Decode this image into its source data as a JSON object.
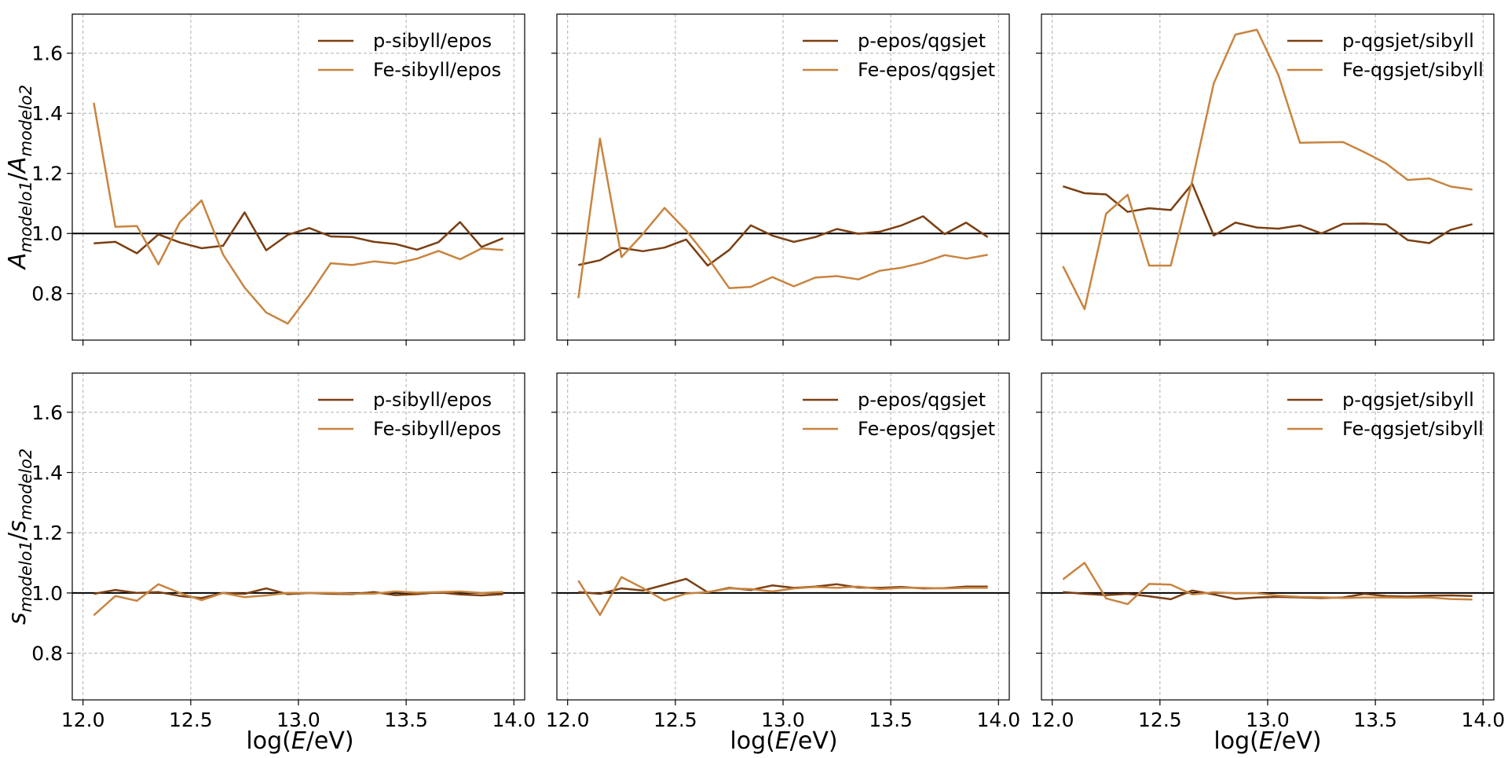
{
  "figure": {
    "ylabel_top": "A_modelo1/A_modelo2",
    "ylabel_bottom": "s_modelo1/s_modelo2",
    "xlabel": "log(E/eV)"
  },
  "colors": {
    "p": "#7b3f12",
    "fe": "#c8843f",
    "ref": "#000000"
  },
  "chart_data": [
    {
      "type": "line",
      "panel": "top-left",
      "legend_position": "top-right",
      "xlim": [
        11.95,
        14.05
      ],
      "ylim": [
        0.645,
        1.73
      ],
      "xticks": [
        "12.0",
        "12.5",
        "13.0",
        "13.5",
        "14.0"
      ],
      "yticks": [
        "0.8",
        "1.0",
        "1.2",
        "1.4",
        "1.6"
      ],
      "x": [
        12.05,
        12.15,
        12.25,
        12.35,
        12.45,
        12.55,
        12.65,
        12.75,
        12.85,
        12.95,
        13.05,
        13.15,
        13.25,
        13.35,
        13.45,
        13.55,
        13.65,
        13.75,
        13.85,
        13.95
      ],
      "series": [
        {
          "name": "p-sibyll/epos",
          "color": "#7b3f12",
          "values": [
            0.967,
            0.972,
            0.934,
            0.997,
            0.97,
            0.951,
            0.959,
            1.07,
            0.944,
            0.995,
            1.018,
            0.99,
            0.988,
            0.972,
            0.965,
            0.946,
            0.971,
            1.038,
            0.955,
            0.984
          ]
        },
        {
          "name": "Fe-sibyll/epos",
          "color": "#c8843f",
          "values": [
            1.435,
            1.022,
            1.025,
            0.897,
            1.038,
            1.11,
            0.93,
            0.82,
            0.737,
            0.7,
            0.795,
            0.901,
            0.895,
            0.907,
            0.9,
            0.916,
            0.942,
            0.914,
            0.95,
            0.945
          ]
        }
      ],
      "reference_line": 1.0
    },
    {
      "type": "line",
      "panel": "top-middle",
      "legend_position": "top-right",
      "xlim": [
        11.95,
        14.05
      ],
      "ylim": [
        0.645,
        1.73
      ],
      "xticks": [
        "12.0",
        "12.5",
        "13.0",
        "13.5",
        "14.0"
      ],
      "yticks": [
        "0.8",
        "1.0",
        "1.2",
        "1.4",
        "1.6"
      ],
      "x": [
        12.05,
        12.15,
        12.25,
        12.35,
        12.45,
        12.55,
        12.65,
        12.75,
        12.85,
        12.95,
        13.05,
        13.15,
        13.25,
        13.35,
        13.45,
        13.55,
        13.65,
        13.75,
        13.85,
        13.95
      ],
      "series": [
        {
          "name": "p-epos/qgsjet",
          "color": "#7b3f12",
          "values": [
            0.895,
            0.911,
            0.952,
            0.941,
            0.953,
            0.98,
            0.893,
            0.945,
            1.027,
            0.993,
            0.972,
            0.988,
            1.015,
            0.999,
            1.006,
            1.027,
            1.057,
            0.998,
            1.036,
            0.988
          ]
        },
        {
          "name": "Fe-epos/qgsjet",
          "color": "#c8843f",
          "values": [
            0.785,
            1.316,
            0.921,
            0.999,
            1.085,
            1.01,
            0.92,
            0.818,
            0.822,
            0.855,
            0.824,
            0.853,
            0.858,
            0.847,
            0.876,
            0.886,
            0.903,
            0.928,
            0.916,
            0.929
          ]
        }
      ],
      "reference_line": 1.0
    },
    {
      "type": "line",
      "panel": "top-right",
      "legend_position": "top-right",
      "xlim": [
        11.95,
        14.05
      ],
      "ylim": [
        0.645,
        1.73
      ],
      "xticks": [
        "12.0",
        "12.5",
        "13.0",
        "13.5",
        "14.0"
      ],
      "yticks": [
        "0.8",
        "1.0",
        "1.2",
        "1.4",
        "1.6"
      ],
      "x": [
        12.05,
        12.15,
        12.25,
        12.35,
        12.45,
        12.55,
        12.65,
        12.75,
        12.85,
        12.95,
        13.05,
        13.15,
        13.25,
        13.35,
        13.45,
        13.55,
        13.65,
        13.75,
        13.85,
        13.95
      ],
      "series": [
        {
          "name": "p-qgsjet/sibyll",
          "color": "#7b3f12",
          "values": [
            1.157,
            1.134,
            1.13,
            1.072,
            1.084,
            1.078,
            1.165,
            0.993,
            1.036,
            1.02,
            1.016,
            1.027,
            1.0,
            1.032,
            1.033,
            1.03,
            0.978,
            0.968,
            1.012,
            1.031
          ]
        },
        {
          "name": "Fe-qgsjet/sibyll",
          "color": "#c8843f",
          "values": [
            0.891,
            0.748,
            1.066,
            1.129,
            0.893,
            0.893,
            1.176,
            1.5,
            1.662,
            1.678,
            1.527,
            1.302,
            1.303,
            1.304,
            1.27,
            1.233,
            1.178,
            1.183,
            1.156,
            1.146
          ]
        }
      ],
      "reference_line": 1.0
    },
    {
      "type": "line",
      "panel": "bottom-left",
      "legend_position": "top-right",
      "xlim": [
        11.95,
        14.05
      ],
      "ylim": [
        0.645,
        1.73
      ],
      "xticks": [
        "12.0",
        "12.5",
        "13.0",
        "13.5",
        "14.0"
      ],
      "yticks": [
        "0.8",
        "1.0",
        "1.2",
        "1.4",
        "1.6"
      ],
      "x": [
        12.05,
        12.15,
        12.25,
        12.35,
        12.45,
        12.55,
        12.65,
        12.75,
        12.85,
        12.95,
        13.05,
        13.15,
        13.25,
        13.35,
        13.45,
        13.55,
        13.65,
        13.75,
        13.85,
        13.95
      ],
      "series": [
        {
          "name": "p-sibyll/epos",
          "color": "#7b3f12",
          "values": [
            0.997,
            1.01,
            1.0,
            1.003,
            0.99,
            0.983,
            1.0,
            0.997,
            1.015,
            0.996,
            1.0,
            0.997,
            0.996,
            1.003,
            0.993,
            0.996,
            1.002,
            0.995,
            0.992,
            0.996
          ]
        },
        {
          "name": "Fe-sibyll/epos",
          "color": "#c8843f",
          "values": [
            0.926,
            0.99,
            0.974,
            1.029,
            1.0,
            0.976,
            1.0,
            0.986,
            0.992,
            1.0,
            1.0,
            1.0,
            0.998,
            0.998,
            1.005,
            1.001,
            1.003,
            1.005,
            1.0,
            1.003
          ]
        }
      ],
      "reference_line": 1.0
    },
    {
      "type": "line",
      "panel": "bottom-middle",
      "legend_position": "top-right",
      "xlim": [
        11.95,
        14.05
      ],
      "ylim": [
        0.645,
        1.73
      ],
      "xticks": [
        "12.0",
        "12.5",
        "13.0",
        "13.5",
        "14.0"
      ],
      "yticks": [
        "0.8",
        "1.0",
        "1.2",
        "1.4",
        "1.6"
      ],
      "x": [
        12.05,
        12.15,
        12.25,
        12.35,
        12.45,
        12.55,
        12.65,
        12.75,
        12.85,
        12.95,
        13.05,
        13.15,
        13.25,
        13.35,
        13.45,
        13.55,
        13.65,
        13.75,
        13.85,
        13.95
      ],
      "series": [
        {
          "name": "p-epos/qgsjet",
          "color": "#7b3f12",
          "values": [
            1.003,
            0.997,
            1.015,
            1.008,
            1.027,
            1.047,
            1.002,
            1.017,
            1.01,
            1.025,
            1.017,
            1.021,
            1.029,
            1.018,
            1.017,
            1.02,
            1.015,
            1.016,
            1.021,
            1.021
          ]
        },
        {
          "name": "Fe-epos/qgsjet",
          "color": "#c8843f",
          "values": [
            1.041,
            0.927,
            1.053,
            1.016,
            0.975,
            0.998,
            1.003,
            1.015,
            1.013,
            1.005,
            1.015,
            1.02,
            1.017,
            1.021,
            1.013,
            1.017,
            1.017,
            1.015,
            1.017,
            1.017
          ]
        }
      ],
      "reference_line": 1.0
    },
    {
      "type": "line",
      "panel": "bottom-right",
      "legend_position": "top-right",
      "xlim": [
        11.95,
        14.05
      ],
      "ylim": [
        0.645,
        1.73
      ],
      "xticks": [
        "12.0",
        "12.5",
        "13.0",
        "13.5",
        "14.0"
      ],
      "yticks": [
        "0.8",
        "1.0",
        "1.2",
        "1.4",
        "1.6"
      ],
      "x": [
        12.05,
        12.15,
        12.25,
        12.35,
        12.45,
        12.55,
        12.65,
        12.75,
        12.85,
        12.95,
        13.05,
        13.15,
        13.25,
        13.35,
        13.45,
        13.55,
        13.65,
        13.75,
        13.85,
        13.95
      ],
      "series": [
        {
          "name": "p-qgsjet/sibyll",
          "color": "#7b3f12",
          "values": [
            1.003,
            0.997,
            0.993,
            0.997,
            0.989,
            0.979,
            1.008,
            0.995,
            0.98,
            0.985,
            0.987,
            0.985,
            0.983,
            0.985,
            0.997,
            0.99,
            0.988,
            0.991,
            0.992,
            0.99
          ]
        },
        {
          "name": "Fe-qgsjet/sibyll",
          "color": "#c8843f",
          "values": [
            1.045,
            1.1,
            0.982,
            0.963,
            1.03,
            1.028,
            0.995,
            1.002,
            0.999,
            0.999,
            0.991,
            0.987,
            0.986,
            0.983,
            0.985,
            0.985,
            0.984,
            0.985,
            0.98,
            0.978
          ]
        }
      ],
      "reference_line": 1.0
    }
  ]
}
